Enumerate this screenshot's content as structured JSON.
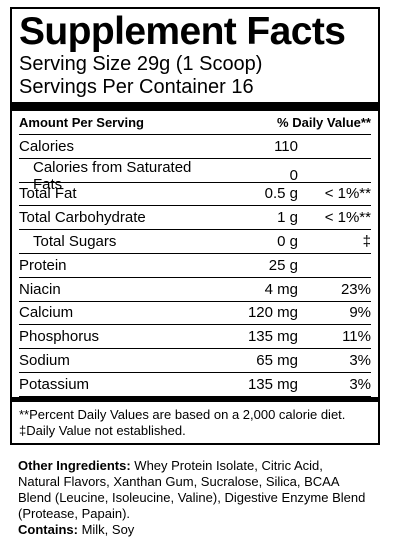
{
  "title": "Supplement Facts",
  "serving_size": "Serving Size 29g (1 Scoop)",
  "servings_per_container": "Servings Per Container  16",
  "header": {
    "amount": "Amount Per Serving",
    "dv": "% Daily Value**"
  },
  "rows": [
    {
      "name": "Calories",
      "amount": "110",
      "dv": ""
    },
    {
      "name": "Calories from Saturated Fats",
      "amount": "0",
      "dv": ""
    },
    {
      "name": "Total Fat",
      "amount": "0.5 g",
      "dv": "< 1%**"
    },
    {
      "name": "Total Carbohydrate",
      "amount": "1 g",
      "dv": "< 1%**"
    },
    {
      "name": "Total Sugars",
      "amount": "0 g",
      "dv": "‡"
    },
    {
      "name": "Protein",
      "amount": "25 g",
      "dv": ""
    },
    {
      "name": "Niacin",
      "amount": "4 mg",
      "dv": "23%"
    },
    {
      "name": "Calcium",
      "amount": "120 mg",
      "dv": "9%"
    },
    {
      "name": "Phosphorus",
      "amount": "135 mg",
      "dv": "11%"
    },
    {
      "name": "Sodium",
      "amount": "65 mg",
      "dv": "3%"
    },
    {
      "name": "Potassium",
      "amount": "135 mg",
      "dv": "3%"
    }
  ],
  "footnote_1": "**Percent Daily Values are based on a 2,000 calorie diet.",
  "footnote_2": "‡Daily Value not established.",
  "ingredients_label": "Other Ingredients:",
  "ingredients_text": " Whey Protein Isolate, Citric Acid, Natural Flavors, Xanthan Gum, Sucralose, Silica, BCAA Blend (Leucine, Isoleucine, Valine), Digestive Enzyme Blend (Protease, Papain).",
  "contains_label": "Contains:",
  "contains_text": " Milk, Soy"
}
